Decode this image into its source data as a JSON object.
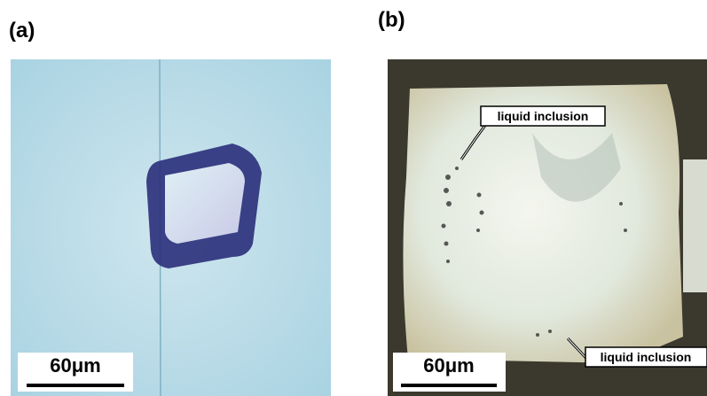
{
  "panels": [
    {
      "label": "(a)",
      "scale_bar": "60μm"
    },
    {
      "label": "(b)",
      "scale_bar": "60μm",
      "annotations": [
        "liquid inclusion",
        "liquid inclusion"
      ]
    }
  ]
}
